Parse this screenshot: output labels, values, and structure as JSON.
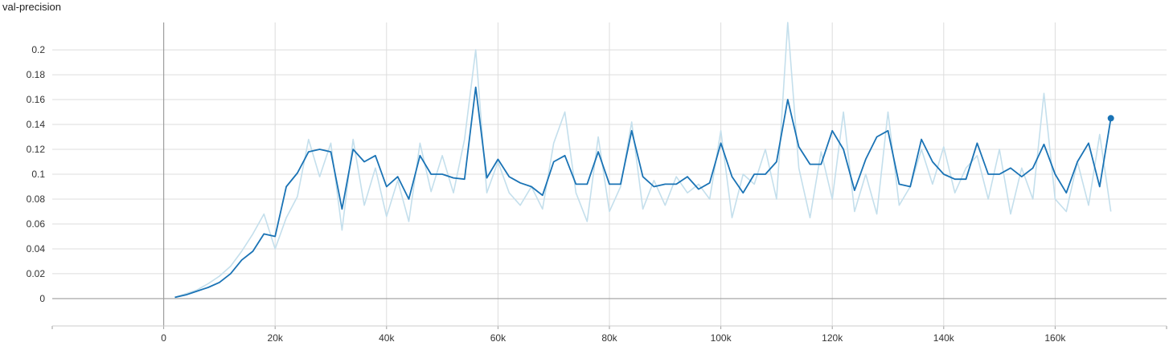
{
  "chart_data": {
    "type": "line",
    "title": "val-precision",
    "xlabel": "",
    "ylabel": "",
    "xlim": [
      -20000,
      180000
    ],
    "ylim": [
      -0.022,
      0.222
    ],
    "x_ticks": [
      0,
      20000,
      40000,
      60000,
      80000,
      100000,
      120000,
      140000,
      160000
    ],
    "x_tick_labels": [
      "0",
      "20k",
      "40k",
      "60k",
      "80k",
      "100k",
      "120k",
      "140k",
      "160k"
    ],
    "y_ticks": [
      0,
      0.02,
      0.04,
      0.06,
      0.08,
      0.1,
      0.12,
      0.14,
      0.16,
      0.18,
      0.2
    ],
    "y_tick_labels": [
      "0",
      "0.02",
      "0.04",
      "0.06",
      "0.08",
      "0.1",
      "0.12",
      "0.14",
      "0.16",
      "0.18",
      "0.2"
    ],
    "grid": true,
    "colors": {
      "smoothed": "#1a73b5",
      "raw": "#c4dfec",
      "grid": "#dddddd",
      "axis": "#9e9e9e"
    },
    "series": [
      {
        "key": "raw",
        "x": [
          2000,
          4000,
          6000,
          8000,
          10000,
          12000,
          14000,
          16000,
          18000,
          20000,
          22000,
          24000,
          26000,
          28000,
          30000,
          32000,
          34000,
          36000,
          38000,
          40000,
          42000,
          44000,
          46000,
          48000,
          50000,
          52000,
          54000,
          56000,
          58000,
          60000,
          62000,
          64000,
          66000,
          68000,
          70000,
          72000,
          74000,
          76000,
          78000,
          80000,
          82000,
          84000,
          86000,
          88000,
          90000,
          92000,
          94000,
          96000,
          98000,
          100000,
          102000,
          104000,
          106000,
          108000,
          110000,
          112000,
          114000,
          116000,
          118000,
          120000,
          122000,
          124000,
          126000,
          128000,
          130000,
          132000,
          134000,
          136000,
          138000,
          140000,
          142000,
          144000,
          146000,
          148000,
          150000,
          152000,
          154000,
          156000,
          158000,
          160000,
          162000,
          164000,
          166000,
          168000,
          170000
        ],
        "y": [
          0.001,
          0.004,
          0.007,
          0.012,
          0.018,
          0.026,
          0.038,
          0.052,
          0.068,
          0.04,
          0.065,
          0.082,
          0.128,
          0.098,
          0.125,
          0.055,
          0.128,
          0.075,
          0.105,
          0.066,
          0.095,
          0.062,
          0.125,
          0.086,
          0.115,
          0.085,
          0.128,
          0.2,
          0.085,
          0.11,
          0.085,
          0.075,
          0.09,
          0.072,
          0.125,
          0.15,
          0.085,
          0.062,
          0.13,
          0.07,
          0.09,
          0.142,
          0.072,
          0.095,
          0.075,
          0.098,
          0.085,
          0.092,
          0.08,
          0.135,
          0.065,
          0.1,
          0.092,
          0.12,
          0.08,
          0.225,
          0.105,
          0.065,
          0.118,
          0.08,
          0.15,
          0.07,
          0.1,
          0.068,
          0.15,
          0.075,
          0.09,
          0.12,
          0.092,
          0.122,
          0.085,
          0.105,
          0.115,
          0.08,
          0.12,
          0.068,
          0.105,
          0.08,
          0.165,
          0.08,
          0.07,
          0.11,
          0.075,
          0.132,
          0.07
        ]
      },
      {
        "key": "smoothed",
        "x": [
          2000,
          4000,
          6000,
          8000,
          10000,
          12000,
          14000,
          16000,
          18000,
          20000,
          22000,
          24000,
          26000,
          28000,
          30000,
          32000,
          34000,
          36000,
          38000,
          40000,
          42000,
          44000,
          46000,
          48000,
          50000,
          52000,
          54000,
          56000,
          58000,
          60000,
          62000,
          64000,
          66000,
          68000,
          70000,
          72000,
          74000,
          76000,
          78000,
          80000,
          82000,
          84000,
          86000,
          88000,
          90000,
          92000,
          94000,
          96000,
          98000,
          100000,
          102000,
          104000,
          106000,
          108000,
          110000,
          112000,
          114000,
          116000,
          118000,
          120000,
          122000,
          124000,
          126000,
          128000,
          130000,
          132000,
          134000,
          136000,
          138000,
          140000,
          142000,
          144000,
          146000,
          148000,
          150000,
          152000,
          154000,
          156000,
          158000,
          160000,
          162000,
          164000,
          166000,
          168000,
          170000
        ],
        "y": [
          0.001,
          0.003,
          0.006,
          0.009,
          0.013,
          0.02,
          0.031,
          0.038,
          0.052,
          0.05,
          0.09,
          0.101,
          0.118,
          0.12,
          0.118,
          0.072,
          0.12,
          0.11,
          0.115,
          0.09,
          0.098,
          0.08,
          0.115,
          0.1,
          0.1,
          0.097,
          0.096,
          0.17,
          0.097,
          0.112,
          0.098,
          0.093,
          0.09,
          0.083,
          0.11,
          0.115,
          0.092,
          0.092,
          0.118,
          0.092,
          0.092,
          0.135,
          0.098,
          0.09,
          0.092,
          0.092,
          0.098,
          0.088,
          0.093,
          0.125,
          0.098,
          0.085,
          0.1,
          0.1,
          0.11,
          0.16,
          0.122,
          0.108,
          0.108,
          0.135,
          0.12,
          0.087,
          0.112,
          0.13,
          0.135,
          0.092,
          0.09,
          0.128,
          0.11,
          0.1,
          0.096,
          0.096,
          0.125,
          0.1,
          0.1,
          0.105,
          0.098,
          0.105,
          0.124,
          0.1,
          0.085,
          0.11,
          0.125,
          0.09,
          0.145
        ]
      }
    ]
  }
}
